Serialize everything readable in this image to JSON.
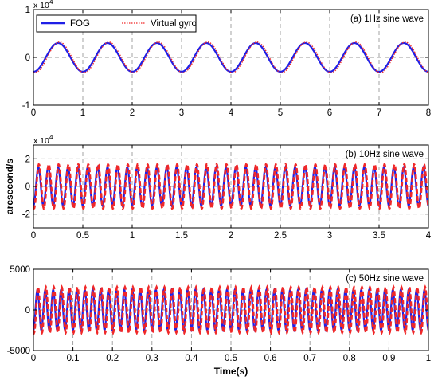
{
  "chart_data": [
    {
      "type": "line",
      "annotation": "(a) 1Hz sine wave",
      "exponent_label": "x 10",
      "exponent_power": "4",
      "xlim": [
        0,
        8
      ],
      "ylim": [
        -1,
        1
      ],
      "xticks": [
        0,
        1,
        2,
        3,
        4,
        5,
        6,
        7,
        8
      ],
      "xtick_labels": [
        "0",
        "1",
        "2",
        "3",
        "4",
        "5",
        "6",
        "7",
        "8"
      ],
      "yticks": [
        -1,
        0,
        1
      ],
      "ytick_labels": [
        "-1",
        "0",
        "1"
      ],
      "grid": "x-dashed and y-dashed",
      "legend_position": "top-left",
      "freq_hz": 1,
      "series": [
        {
          "name": "FOG",
          "color": "#1f1fe6",
          "style": "solid",
          "amplitude": 0.3,
          "phase_deg": -90
        },
        {
          "name": "Virtual gyro",
          "color": "#f02828",
          "style": "dotted",
          "amplitude": 0.32,
          "phase_deg": -100
        }
      ]
    },
    {
      "type": "line",
      "annotation": "(b) 10Hz sine wave",
      "exponent_label": "x 10",
      "exponent_power": "4",
      "xlim": [
        0,
        4
      ],
      "ylim": [
        -3,
        3
      ],
      "xticks": [
        0,
        0.5,
        1,
        1.5,
        2,
        2.5,
        3,
        3.5,
        4
      ],
      "xtick_labels": [
        "0",
        "0.5",
        "1",
        "1.5",
        "2",
        "2.5",
        "3",
        "3.5",
        "4"
      ],
      "yticks": [
        -2,
        0,
        2
      ],
      "ytick_labels": [
        "-2",
        "0",
        "2"
      ],
      "ylabel": "arcsecond/s",
      "grid": "x-dashed and y-dashed",
      "freq_hz": 10,
      "series": [
        {
          "color": "#1f1fe6",
          "style": "solid",
          "amplitude": 1.4,
          "phase_deg": -90
        },
        {
          "color": "#f02828",
          "style": "dashed",
          "amplitude": 1.6,
          "phase_deg": -110
        }
      ]
    },
    {
      "type": "line",
      "annotation": "(c) 50Hz sine wave",
      "xlim": [
        0,
        1
      ],
      "ylim": [
        -5000,
        5000
      ],
      "xticks": [
        0,
        0.1,
        0.2,
        0.3,
        0.4,
        0.5,
        0.6,
        0.7,
        0.8,
        0.9,
        1
      ],
      "xtick_labels": [
        "0",
        "0.1",
        "0.2",
        "0.3",
        "0.4",
        "0.5",
        "0.6",
        "0.7",
        "0.8",
        "0.9",
        "1"
      ],
      "yticks": [
        -5000,
        0,
        5000
      ],
      "ytick_labels": [
        "-5000",
        "0",
        "5000"
      ],
      "xlabel": "Time(s)",
      "grid": "x-dashed and y-dashed",
      "freq_hz": 50,
      "series": [
        {
          "color": "#1f1fe6",
          "style": "solid",
          "amplitude": 2500,
          "phase_deg": -90
        },
        {
          "color": "#f02828",
          "style": "dashed",
          "amplitude": 2800,
          "phase_deg": -120
        }
      ]
    }
  ],
  "colors": {
    "axis": "#000000",
    "grid": "#9a9a9a",
    "background": "#ffffff"
  }
}
